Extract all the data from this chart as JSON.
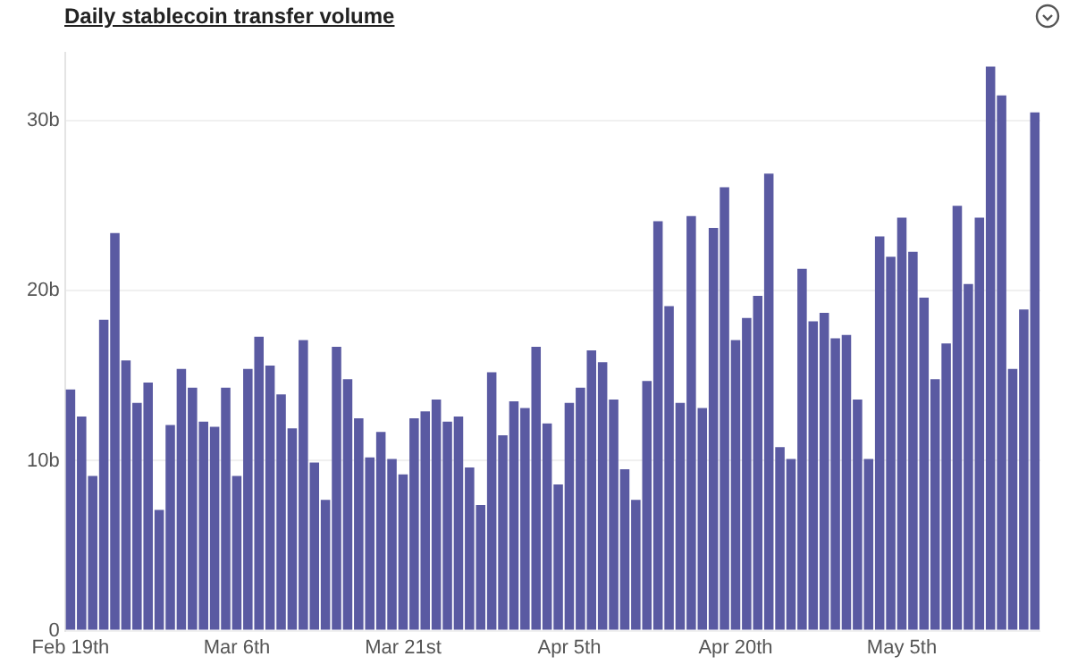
{
  "chart_data": {
    "type": "bar",
    "title": "Daily stablecoin transfer volume",
    "categories": [
      "Feb 19th",
      null,
      null,
      null,
      null,
      null,
      null,
      null,
      null,
      null,
      null,
      null,
      null,
      null,
      null,
      "Mar 6th",
      null,
      null,
      null,
      null,
      null,
      null,
      null,
      null,
      null,
      null,
      null,
      null,
      null,
      null,
      "Mar 21st",
      null,
      null,
      null,
      null,
      null,
      null,
      null,
      null,
      null,
      null,
      null,
      null,
      null,
      null,
      "Apr 5th",
      null,
      null,
      null,
      null,
      null,
      null,
      null,
      null,
      null,
      null,
      null,
      null,
      null,
      null,
      "Apr 20th",
      null,
      null,
      null,
      null,
      null,
      null,
      null,
      null,
      null,
      null,
      null,
      null,
      null,
      null,
      "May 5th",
      null,
      null,
      null,
      null,
      null,
      null,
      null,
      null,
      null,
      null,
      null,
      null
    ],
    "values": [
      14.2,
      12.6,
      9.1,
      18.3,
      23.4,
      15.9,
      13.4,
      14.6,
      7.1,
      12.1,
      15.4,
      14.3,
      12.3,
      12.0,
      14.3,
      9.1,
      15.4,
      17.3,
      15.6,
      13.9,
      11.9,
      17.1,
      9.9,
      7.7,
      16.7,
      14.8,
      12.5,
      10.2,
      11.7,
      10.1,
      9.2,
      12.5,
      12.9,
      13.6,
      12.3,
      12.6,
      9.6,
      7.4,
      15.2,
      11.5,
      13.5,
      13.1,
      16.7,
      12.2,
      8.6,
      13.4,
      14.3,
      16.5,
      15.8,
      13.6,
      9.5,
      7.7,
      14.7,
      24.1,
      19.1,
      13.4,
      24.4,
      13.1,
      23.7,
      26.1,
      17.1,
      18.4,
      19.7,
      26.9,
      10.8,
      10.1,
      21.3,
      18.2,
      18.7,
      17.2,
      17.4,
      13.6,
      10.1,
      23.2,
      22.0,
      24.3,
      22.3,
      19.6,
      14.8,
      16.9,
      25.0,
      20.4,
      24.3,
      33.2,
      31.5,
      15.4,
      18.9,
      30.5
    ],
    "color": "#5a5aa2",
    "ylim": [
      0,
      34
    ],
    "yticks": [
      0,
      {
        "value": 10,
        "label": "10b"
      },
      {
        "value": 20,
        "label": "20b"
      },
      {
        "value": 30,
        "label": "30b"
      }
    ],
    "grid": "y"
  }
}
